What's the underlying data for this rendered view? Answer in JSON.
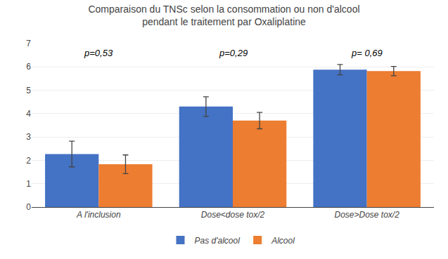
{
  "chart_data": {
    "type": "bar",
    "title": "Comparaison du TNSc selon la consommation ou non d'alcool\npendant le traitement par Oxaliplatine",
    "categories": [
      "A l'inclusion",
      "Dose<dose tox/2",
      "Dose>Dose tox/2"
    ],
    "series": [
      {
        "name": "Pas d'alcool",
        "color": "#4472C4",
        "values": [
          2.27,
          4.3,
          5.88
        ],
        "errors": [
          0.55,
          0.42,
          0.22
        ]
      },
      {
        "name": "Alcool",
        "color": "#ED7D31",
        "values": [
          1.83,
          3.7,
          5.82
        ],
        "errors": [
          0.4,
          0.35,
          0.2
        ]
      }
    ],
    "annotations": [
      "p=0,53",
      "p=0,29",
      "p= 0,69"
    ],
    "ylim": [
      0,
      7
    ],
    "yticks": [
      0,
      1,
      2,
      3,
      4,
      5,
      6,
      7
    ],
    "grid": true,
    "legend": "bottom"
  }
}
